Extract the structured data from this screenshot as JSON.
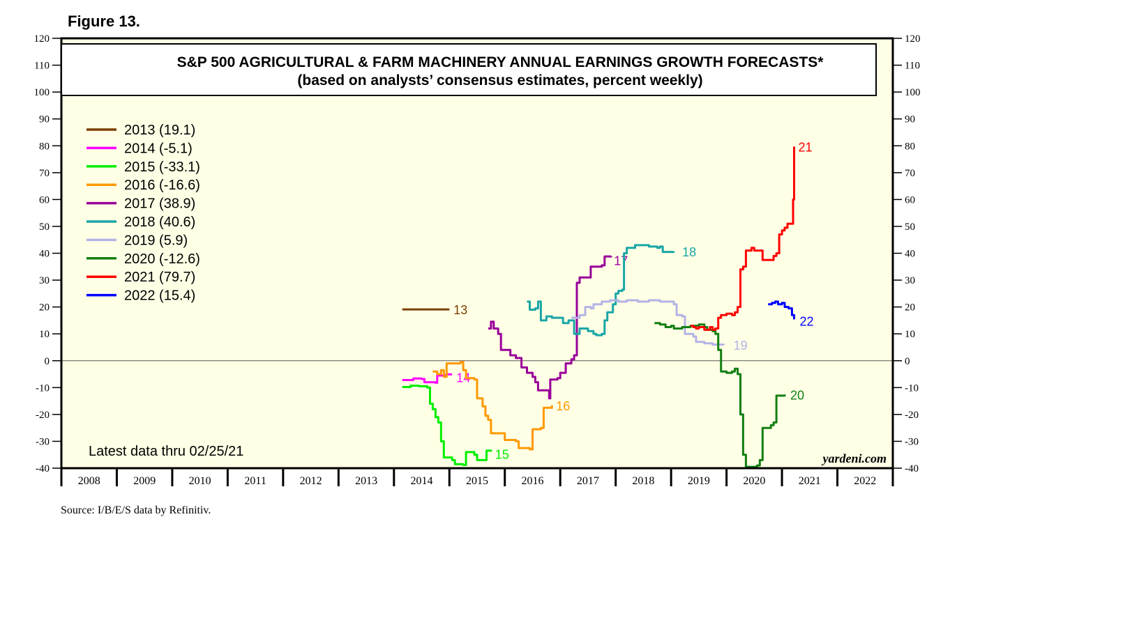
{
  "figure_label": "Figure 13.",
  "source": "Source: I/B/E/S data by Refinitiv.",
  "latest_note": "Latest data thru 02/25/21",
  "watermark": "yardeni.com",
  "chart_data": {
    "type": "line",
    "title": "S&P 500 AGRICULTURAL & FARM MACHINERY ANNUAL EARNINGS GROWTH FORECASTS*",
    "subtitle": "(based on analysts’ consensus estimates, percent weekly)",
    "xlabel": "",
    "ylabel": "",
    "ylim": [
      -40,
      120
    ],
    "xlim": [
      2008,
      2023
    ],
    "y_ticks": [
      120,
      110,
      100,
      90,
      80,
      70,
      60,
      50,
      40,
      30,
      20,
      10,
      0,
      -10,
      -20,
      -30,
      -40
    ],
    "x_labels": [
      "2008",
      "2009",
      "2010",
      "2011",
      "2012",
      "2013",
      "2014",
      "2015",
      "2016",
      "2017",
      "2018",
      "2019",
      "2020",
      "2021",
      "2022"
    ],
    "zero_line": 0,
    "legend_position": "top-left",
    "series": [
      {
        "name": "2013",
        "legend": "2013 (19.1)",
        "color": "#7b3f00",
        "end_label": "13",
        "label_offset": [
          6,
          4
        ],
        "points": [
          [
            2014.15,
            19.1
          ],
          [
            2015.0,
            19.1
          ]
        ]
      },
      {
        "name": "2014",
        "legend": "2014 (-5.1)",
        "color": "#ff00ff",
        "end_label": "14",
        "label_offset": [
          6,
          8
        ],
        "points": [
          [
            2014.15,
            -7.2
          ],
          [
            2014.3,
            -7.2
          ],
          [
            2014.35,
            -6.6
          ],
          [
            2014.5,
            -6.8
          ],
          [
            2014.55,
            -8
          ],
          [
            2014.75,
            -8.2
          ],
          [
            2014.78,
            -5.5
          ],
          [
            2014.9,
            -5.3
          ],
          [
            2014.95,
            -5.1
          ],
          [
            2015.05,
            -5.1
          ]
        ]
      },
      {
        "name": "2015",
        "legend": "2015 (-33.1)",
        "color": "#00ee00",
        "end_label": "15",
        "label_offset": [
          6,
          10
        ],
        "points": [
          [
            2014.15,
            -9.8
          ],
          [
            2014.3,
            -9.3
          ],
          [
            2014.45,
            -9.5
          ],
          [
            2014.6,
            -10
          ],
          [
            2014.65,
            -16
          ],
          [
            2014.7,
            -18
          ],
          [
            2014.75,
            -21
          ],
          [
            2014.8,
            -23
          ],
          [
            2014.85,
            -30
          ],
          [
            2014.9,
            -36
          ],
          [
            2015.05,
            -37
          ],
          [
            2015.1,
            -38.5
          ],
          [
            2015.25,
            -38.8
          ],
          [
            2015.3,
            -34
          ],
          [
            2015.45,
            -35
          ],
          [
            2015.5,
            -37
          ],
          [
            2015.65,
            -37
          ],
          [
            2015.67,
            -33.5
          ],
          [
            2015.75,
            -33.1
          ]
        ]
      },
      {
        "name": "2016",
        "legend": "2016 (-16.6)",
        "color": "#ff9900",
        "end_label": "16",
        "label_offset": [
          6,
          4
        ],
        "points": [
          [
            2014.7,
            -4
          ],
          [
            2014.78,
            -5
          ],
          [
            2014.85,
            -3.5
          ],
          [
            2014.9,
            -6
          ],
          [
            2014.95,
            -1
          ],
          [
            2015.2,
            -0.5
          ],
          [
            2015.25,
            -3.5
          ],
          [
            2015.3,
            -6.5
          ],
          [
            2015.45,
            -7
          ],
          [
            2015.5,
            -14
          ],
          [
            2015.6,
            -17
          ],
          [
            2015.65,
            -20.5
          ],
          [
            2015.7,
            -22
          ],
          [
            2015.75,
            -27
          ],
          [
            2015.95,
            -27
          ],
          [
            2016.0,
            -29.5
          ],
          [
            2016.2,
            -30
          ],
          [
            2016.25,
            -32.5
          ],
          [
            2016.45,
            -33
          ],
          [
            2016.5,
            -25.5
          ],
          [
            2016.65,
            -25
          ],
          [
            2016.7,
            -17.5
          ],
          [
            2016.85,
            -16.6
          ]
        ]
      },
      {
        "name": "2017",
        "legend": "2017 (38.9)",
        "color": "#990099",
        "end_label": "17",
        "label_offset": [
          4,
          10
        ],
        "points": [
          [
            2015.7,
            12
          ],
          [
            2015.75,
            14.5
          ],
          [
            2015.8,
            12
          ],
          [
            2015.88,
            10
          ],
          [
            2015.93,
            4
          ],
          [
            2016.05,
            4
          ],
          [
            2016.1,
            2
          ],
          [
            2016.2,
            1
          ],
          [
            2016.3,
            -2.5
          ],
          [
            2016.4,
            -4.5
          ],
          [
            2016.5,
            -6
          ],
          [
            2016.55,
            -8
          ],
          [
            2016.6,
            -11
          ],
          [
            2016.75,
            -11
          ],
          [
            2016.8,
            -14
          ],
          [
            2016.82,
            -7
          ],
          [
            2016.95,
            -6.5
          ],
          [
            2017.0,
            -4.5
          ],
          [
            2017.1,
            -1
          ],
          [
            2017.2,
            0.5
          ],
          [
            2017.25,
            2
          ],
          [
            2017.3,
            29
          ],
          [
            2017.35,
            31
          ],
          [
            2017.5,
            31
          ],
          [
            2017.55,
            35
          ],
          [
            2017.75,
            35.5
          ],
          [
            2017.8,
            38.8
          ],
          [
            2017.92,
            38.9
          ]
        ]
      },
      {
        "name": "2018",
        "legend": "2018 (40.6)",
        "color": "#1aa6a6",
        "end_label": "18",
        "label_offset": [
          12,
          4
        ],
        "points": [
          [
            2016.4,
            22
          ],
          [
            2016.45,
            19
          ],
          [
            2016.55,
            19.5
          ],
          [
            2016.6,
            22
          ],
          [
            2016.65,
            15
          ],
          [
            2016.75,
            16.5
          ],
          [
            2016.85,
            16
          ],
          [
            2017.0,
            16
          ],
          [
            2017.05,
            14
          ],
          [
            2017.15,
            15
          ],
          [
            2017.25,
            10
          ],
          [
            2017.35,
            12
          ],
          [
            2017.5,
            11
          ],
          [
            2017.6,
            10
          ],
          [
            2017.65,
            9.5
          ],
          [
            2017.75,
            10
          ],
          [
            2017.8,
            15
          ],
          [
            2017.85,
            18
          ],
          [
            2017.95,
            21
          ],
          [
            2018.0,
            25
          ],
          [
            2018.05,
            26
          ],
          [
            2018.12,
            26.5
          ],
          [
            2018.15,
            40
          ],
          [
            2018.2,
            42
          ],
          [
            2018.35,
            43
          ],
          [
            2018.5,
            43
          ],
          [
            2018.6,
            42.5
          ],
          [
            2018.75,
            42
          ],
          [
            2018.8,
            42.5
          ],
          [
            2018.85,
            40.5
          ],
          [
            2019.05,
            40.6
          ]
        ]
      },
      {
        "name": "2019",
        "legend": "2019 (5.9)",
        "color": "#b3b3e6",
        "end_label": "19",
        "label_offset": [
          14,
          4
        ],
        "points": [
          [
            2017.2,
            16
          ],
          [
            2017.3,
            16
          ],
          [
            2017.35,
            17
          ],
          [
            2017.4,
            17
          ],
          [
            2017.45,
            20
          ],
          [
            2017.55,
            19.5
          ],
          [
            2017.6,
            21
          ],
          [
            2017.75,
            22
          ],
          [
            2017.9,
            22.5
          ],
          [
            2018.05,
            22
          ],
          [
            2018.2,
            22.5
          ],
          [
            2018.4,
            22
          ],
          [
            2018.6,
            22.5
          ],
          [
            2018.8,
            22
          ],
          [
            2019.0,
            22
          ],
          [
            2019.05,
            21
          ],
          [
            2019.1,
            17
          ],
          [
            2019.2,
            16.5
          ],
          [
            2019.25,
            10
          ],
          [
            2019.4,
            9
          ],
          [
            2019.45,
            7
          ],
          [
            2019.6,
            6.5
          ],
          [
            2019.75,
            6
          ],
          [
            2019.95,
            5.9
          ]
        ]
      },
      {
        "name": "2020",
        "legend": "2020 (-12.6)",
        "color": "#127f12",
        "end_label": "20",
        "label_offset": [
          8,
          4
        ],
        "points": [
          [
            2018.7,
            14
          ],
          [
            2018.8,
            13.5
          ],
          [
            2018.9,
            12.5
          ],
          [
            2019.0,
            13
          ],
          [
            2019.05,
            12
          ],
          [
            2019.2,
            12.5
          ],
          [
            2019.35,
            13
          ],
          [
            2019.5,
            13.5
          ],
          [
            2019.6,
            12.5
          ],
          [
            2019.65,
            11.5
          ],
          [
            2019.75,
            11
          ],
          [
            2019.8,
            10
          ],
          [
            2019.85,
            4
          ],
          [
            2019.9,
            -4
          ],
          [
            2020.0,
            -4.5
          ],
          [
            2020.1,
            -4
          ],
          [
            2020.15,
            -3
          ],
          [
            2020.2,
            -5
          ],
          [
            2020.25,
            -20
          ],
          [
            2020.3,
            -35
          ],
          [
            2020.35,
            -39.5
          ],
          [
            2020.45,
            -39.5
          ],
          [
            2020.55,
            -39
          ],
          [
            2020.6,
            -37
          ],
          [
            2020.65,
            -25
          ],
          [
            2020.75,
            -25
          ],
          [
            2020.8,
            -24
          ],
          [
            2020.85,
            -23
          ],
          [
            2020.9,
            -13
          ],
          [
            2021.05,
            -12.6
          ]
        ]
      },
      {
        "name": "2021",
        "legend": "2021 (79.7)",
        "color": "#ff0000",
        "end_label": "21",
        "label_offset": [
          6,
          4
        ],
        "points": [
          [
            2019.35,
            13
          ],
          [
            2019.4,
            12.5
          ],
          [
            2019.45,
            12
          ],
          [
            2019.5,
            12.5
          ],
          [
            2019.6,
            11.5
          ],
          [
            2019.7,
            12.5
          ],
          [
            2019.75,
            11.5
          ],
          [
            2019.8,
            12
          ],
          [
            2019.85,
            16
          ],
          [
            2019.9,
            17
          ],
          [
            2020.0,
            17.5
          ],
          [
            2020.1,
            17
          ],
          [
            2020.15,
            18
          ],
          [
            2020.2,
            20
          ],
          [
            2020.25,
            34
          ],
          [
            2020.3,
            35
          ],
          [
            2020.35,
            41
          ],
          [
            2020.45,
            42
          ],
          [
            2020.5,
            41
          ],
          [
            2020.6,
            41
          ],
          [
            2020.65,
            37.5
          ],
          [
            2020.8,
            37.5
          ],
          [
            2020.85,
            39
          ],
          [
            2020.9,
            40
          ],
          [
            2020.95,
            47
          ],
          [
            2021.0,
            48.5
          ],
          [
            2021.05,
            49.5
          ],
          [
            2021.1,
            51
          ],
          [
            2021.18,
            51
          ],
          [
            2021.2,
            60
          ],
          [
            2021.22,
            79.7
          ]
        ]
      },
      {
        "name": "2022",
        "legend": "2022 (15.4)",
        "color": "#0000ff",
        "end_label": "22",
        "label_offset": [
          8,
          6
        ],
        "points": [
          [
            2020.75,
            21
          ],
          [
            2020.82,
            21.5
          ],
          [
            2020.88,
            22
          ],
          [
            2020.93,
            21
          ],
          [
            2021.0,
            21.5
          ],
          [
            2021.05,
            20
          ],
          [
            2021.12,
            19.5
          ],
          [
            2021.18,
            17
          ],
          [
            2021.22,
            15.4
          ]
        ]
      }
    ]
  }
}
